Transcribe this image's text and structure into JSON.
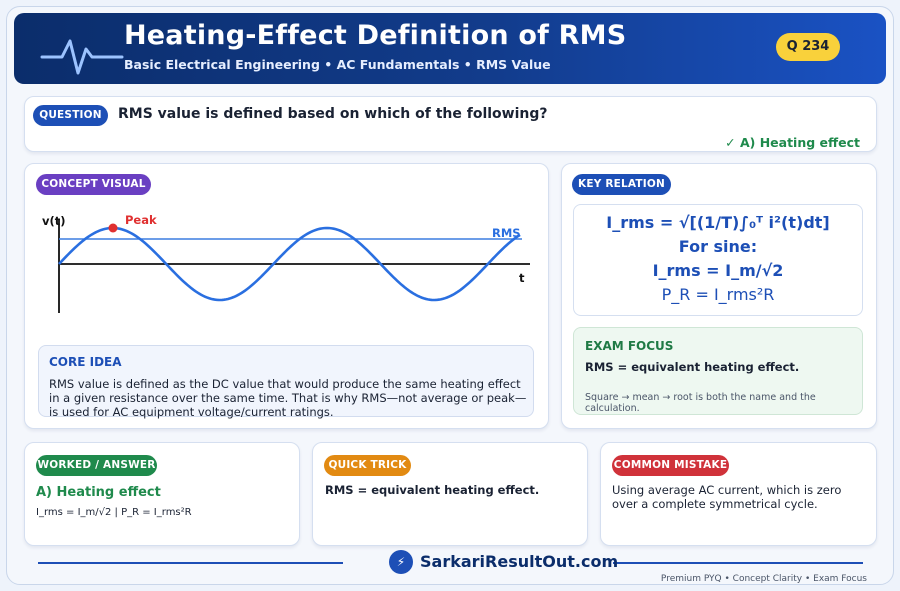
{
  "header": {
    "title": "Heating-Effect Definition of RMS",
    "subtitle": "Basic Electrical Engineering  •  AC Fundamentals  •  RMS Value",
    "question_number": "Q 234",
    "icon": "waveform-icon"
  },
  "question": {
    "badge": "QUESTION",
    "text": "RMS value is defined based on which of the following?",
    "answer": "✓ A) Heating effect"
  },
  "concept": {
    "badge": "CONCEPT VISUAL",
    "y_axis_label": "v(t)",
    "x_axis_label": "t",
    "peak_label": "Peak",
    "rms_label": "RMS",
    "core_title": "CORE IDEA",
    "core_text": "RMS value is defined as the DC value that would produce the same heating effect in a given resistance over the same time. That is why RMS—not average or peak—is used for AC equipment voltage/current ratings."
  },
  "key_relation": {
    "badge": "KEY RELATION",
    "formula_1": "I_rms = √[(1/T)∫₀ᵀ i²(t)dt]",
    "formula_2": "For sine:",
    "formula_3": "I_rms = I_m/√2",
    "formula_4": "P_R = I_rms²R"
  },
  "exam_focus": {
    "title": "EXAM FOCUS",
    "main": "RMS = equivalent heating effect.",
    "note": "Square → mean → root is both the name and the calculation."
  },
  "worked": {
    "badge": "WORKED / ANSWER",
    "answer": "A) Heating effect",
    "detail": "I_rms = I_m/√2 | P_R = I_rms²R"
  },
  "trick": {
    "badge": "QUICK TRICK",
    "text": "RMS = equivalent heating effect."
  },
  "mistake": {
    "badge": "COMMON MISTAKE",
    "text": "Using average AC current, which is zero over a complete symmetrical cycle."
  },
  "footer": {
    "brand": "SarkariResultOut.com",
    "tagline": "Premium PYQ • Concept Clarity • Exam Focus"
  },
  "colors": {
    "accent_blue": "#1d4fb6",
    "green": "#1f8a4c",
    "purple": "#6a3fc2",
    "orange": "#e28a12",
    "red": "#d0323a",
    "badge_yellow": "#f9d13b"
  }
}
